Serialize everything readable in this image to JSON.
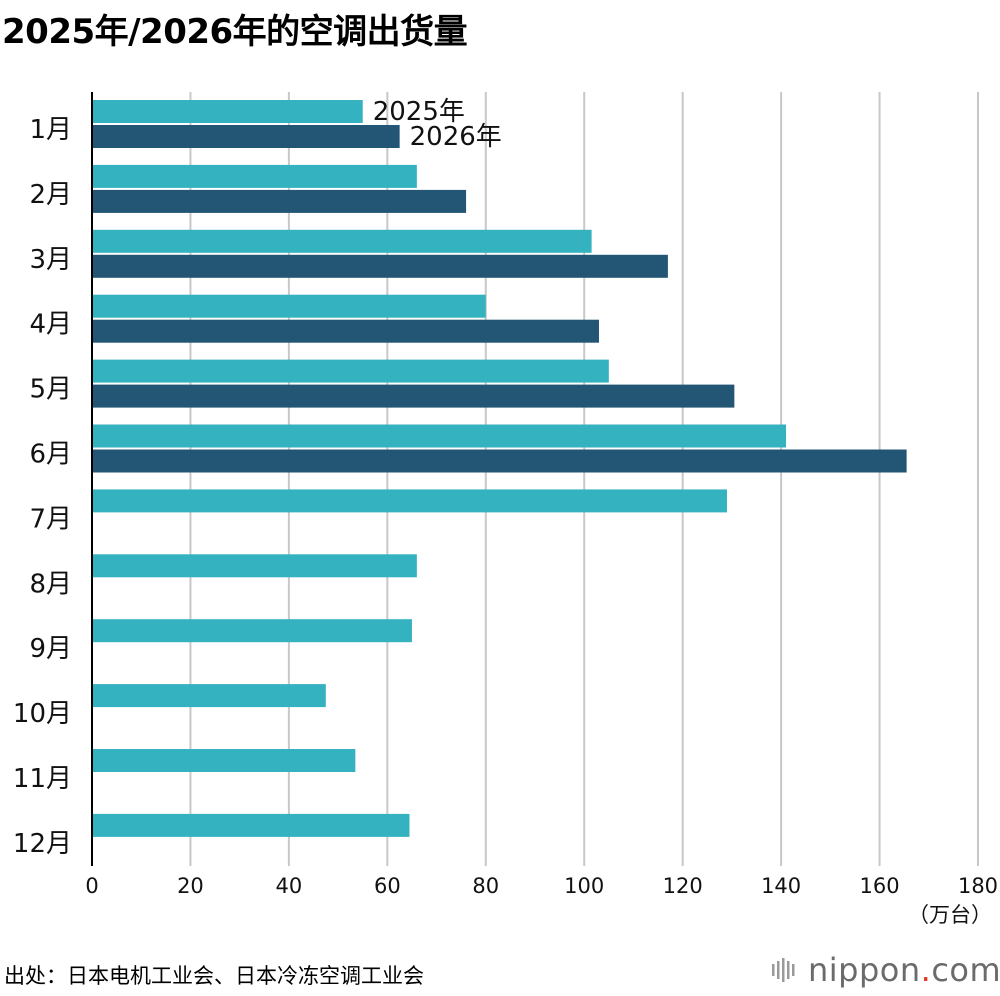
{
  "title": "2025年/2026年的空调出货量",
  "source": "出处：日本电机工业会、日本冷冻空调工业会",
  "brand": {
    "name": "nippon",
    "dot": ".",
    "tld": "com",
    "icon": "nippon-logo-icon"
  },
  "colors": {
    "s2025": "#35b2c0",
    "s2026": "#225674",
    "grid": "#c8c8c8",
    "axis": "#000000"
  },
  "chart_data": {
    "type": "bar",
    "orientation": "horizontal",
    "title": "2025年/2026年的空调出货量",
    "categories": [
      "1月",
      "2月",
      "3月",
      "4月",
      "5月",
      "6月",
      "7月",
      "8月",
      "9月",
      "10月",
      "11月",
      "12月"
    ],
    "series": [
      {
        "name": "2025年",
        "color": "#35b2c0",
        "values": [
          55,
          66,
          101.5,
          80,
          105,
          141,
          129,
          66,
          65,
          47.5,
          53.5,
          64.5
        ]
      },
      {
        "name": "2026年",
        "color": "#225674",
        "values": [
          62.5,
          76,
          117,
          103,
          130.5,
          165.5,
          null,
          null,
          null,
          null,
          null,
          null
        ]
      }
    ],
    "xlim": [
      0,
      180
    ],
    "xticks": [
      0,
      20,
      40,
      60,
      80,
      100,
      120,
      140,
      160,
      180
    ],
    "xticklabels": [
      "0",
      "20",
      "40",
      "60",
      "80",
      "100",
      "120",
      "140",
      "160",
      "180"
    ],
    "xunit": "（万台）",
    "grid": true,
    "legend": "series labels beside the 1月 bars"
  }
}
